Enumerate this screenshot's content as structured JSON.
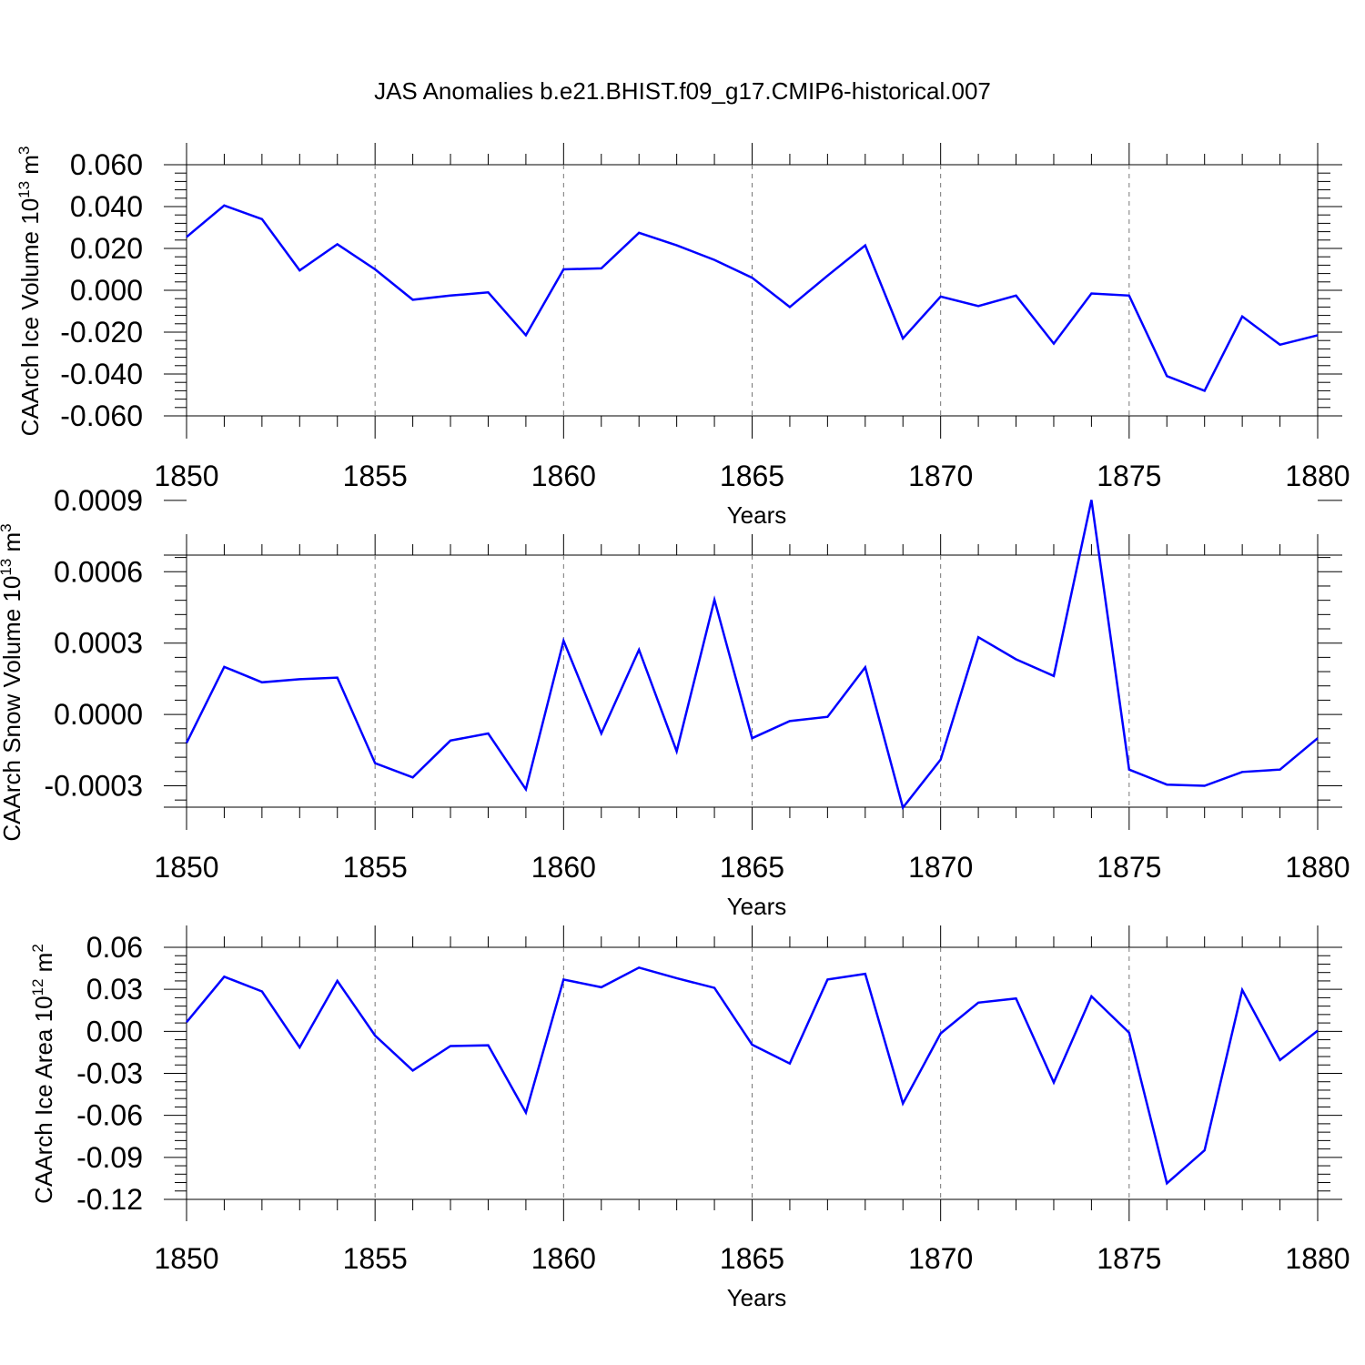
{
  "title": "JAS Anomalies b.e21.BHIST.f09_g17.CMIP6-historical.007",
  "line_color": "#0000ff",
  "chart_data": [
    {
      "type": "line",
      "ylabel_main": "CAArch Ice Volume 10",
      "ylabel_exp": "13",
      "ylabel_unit": " m",
      "ylabel_unit_exp": "3",
      "xlabel": "Years",
      "xlim": [
        1850,
        1880
      ],
      "ylim": [
        -0.06,
        0.06
      ],
      "x_ticks": [
        1850,
        1855,
        1860,
        1865,
        1870,
        1875,
        1880
      ],
      "x_tick_labels": [
        "1850",
        "1855",
        "1860",
        "1865",
        "1870",
        "1875",
        "1880"
      ],
      "y_ticks": [
        -0.06,
        -0.04,
        -0.02,
        0.0,
        0.02,
        0.04,
        0.06
      ],
      "y_tick_labels": [
        "-0.060",
        "-0.040",
        "-0.020",
        "0.000",
        "0.020",
        "0.040",
        "0.060"
      ],
      "grid": "vertical dashed at labeled years",
      "x": [
        1850,
        1851,
        1852,
        1853,
        1854,
        1855,
        1856,
        1857,
        1858,
        1859,
        1860,
        1861,
        1862,
        1863,
        1864,
        1865,
        1866,
        1867,
        1868,
        1869,
        1870,
        1871,
        1872,
        1873,
        1874,
        1875,
        1876,
        1877,
        1878,
        1879,
        1880
      ],
      "values": [
        0.0255,
        0.0405,
        0.034,
        0.0095,
        0.022,
        0.01,
        -0.0045,
        -0.0025,
        -0.001,
        -0.0215,
        0.01,
        0.0105,
        0.0275,
        0.0215,
        0.0145,
        0.006,
        -0.008,
        0.007,
        0.0215,
        -0.023,
        -0.003,
        -0.0075,
        -0.0025,
        -0.0255,
        -0.0015,
        -0.0025,
        -0.041,
        -0.048,
        -0.0125,
        -0.026,
        -0.0215
      ]
    },
    {
      "type": "line",
      "ylabel_main": "CAArch Snow Volume 10",
      "ylabel_exp": "13",
      "ylabel_unit": " m",
      "ylabel_unit_exp": "3",
      "xlabel": "Years",
      "xlim": [
        1850,
        1880
      ],
      "ylim": [
        -0.00039,
        0.00067
      ],
      "x_ticks": [
        1850,
        1855,
        1860,
        1865,
        1870,
        1875,
        1880
      ],
      "x_tick_labels": [
        "1850",
        "1855",
        "1860",
        "1865",
        "1870",
        "1875",
        "1880"
      ],
      "y_ticks": [
        -0.0003,
        0.0,
        0.0003,
        0.0006,
        0.0009
      ],
      "y_tick_labels": [
        "-0.0003",
        "0.0000",
        "0.0003",
        "0.0006",
        "0.0009"
      ],
      "grid": "vertical dashed at labeled years",
      "x": [
        1850,
        1851,
        1852,
        1853,
        1854,
        1855,
        1856,
        1857,
        1858,
        1859,
        1860,
        1861,
        1862,
        1863,
        1864,
        1865,
        1866,
        1867,
        1868,
        1869,
        1870,
        1871,
        1872,
        1873,
        1874,
        1875,
        1876,
        1877,
        1878,
        1879,
        1880
      ],
      "values": [
        -0.00012,
        0.0002,
        0.000135,
        0.000148,
        0.000155,
        -0.000205,
        -0.000265,
        -0.00011,
        -8e-05,
        -0.000315,
        0.00031,
        -8e-05,
        0.000272,
        -0.000155,
        0.000482,
        -0.0001,
        -2.8e-05,
        -1e-05,
        0.000198,
        -0.000392,
        -0.00019,
        0.000325,
        0.000232,
        0.000162,
        0.000902,
        -0.000232,
        -0.000295,
        -0.0003,
        -0.000242,
        -0.000232,
        -0.0001
      ]
    },
    {
      "type": "line",
      "ylabel_main": "CAArch Ice Area 10",
      "ylabel_exp": "12",
      "ylabel_unit": " m",
      "ylabel_unit_exp": "2",
      "xlabel": "Years",
      "xlim": [
        1850,
        1880
      ],
      "ylim": [
        -0.12,
        0.06
      ],
      "x_ticks": [
        1850,
        1855,
        1860,
        1865,
        1870,
        1875,
        1880
      ],
      "x_tick_labels": [
        "1850",
        "1855",
        "1860",
        "1865",
        "1870",
        "1875",
        "1880"
      ],
      "y_ticks": [
        -0.12,
        -0.09,
        -0.06,
        -0.03,
        0.0,
        0.03,
        0.06
      ],
      "y_tick_labels": [
        "-0.12",
        "-0.09",
        "-0.06",
        "-0.03",
        "0.00",
        "0.03",
        "0.06"
      ],
      "grid": "vertical dashed at labeled years",
      "x": [
        1850,
        1851,
        1852,
        1853,
        1854,
        1855,
        1856,
        1857,
        1858,
        1859,
        1860,
        1861,
        1862,
        1863,
        1864,
        1865,
        1866,
        1867,
        1868,
        1869,
        1870,
        1871,
        1872,
        1873,
        1874,
        1875,
        1876,
        1877,
        1878,
        1879,
        1880
      ],
      "values": [
        0.0065,
        0.039,
        0.0285,
        -0.0115,
        0.036,
        -0.003,
        -0.028,
        -0.0105,
        -0.01,
        -0.058,
        0.037,
        0.0315,
        0.0455,
        0.038,
        0.031,
        -0.0095,
        -0.023,
        0.037,
        0.041,
        -0.0515,
        -0.0015,
        0.0205,
        0.0235,
        -0.0365,
        0.025,
        -0.001,
        -0.1085,
        -0.085,
        0.0295,
        -0.0205,
        0.0005
      ]
    }
  ]
}
